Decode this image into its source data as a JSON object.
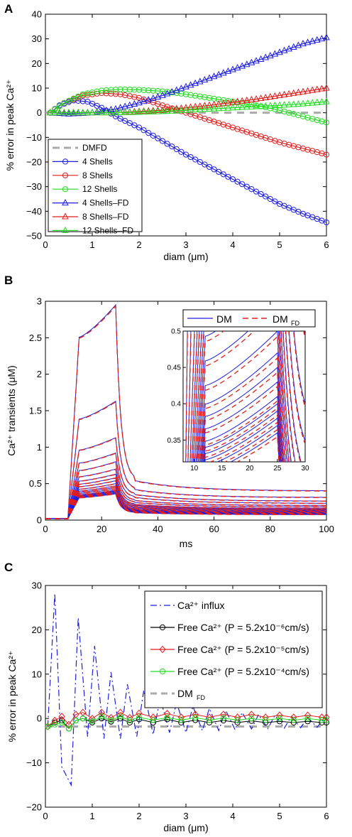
{
  "colors": {
    "blue": "#1f1fe0",
    "red": "#e01f1f",
    "green": "#22dd22",
    "black": "#000000",
    "gray": "#aaaaaa"
  },
  "chart_data": [
    {
      "panel": "A",
      "type": "line",
      "xlabel": "diam (μm)",
      "ylabel": "% error in peak Ca²⁺",
      "xlim": [
        0,
        6
      ],
      "ylim": [
        -50,
        40
      ],
      "xticks": [
        "0",
        "1",
        "2",
        "3",
        "4",
        "5",
        "6"
      ],
      "yticks": [
        "−50",
        "−40",
        "−30",
        "−20",
        "−10",
        "0",
        "10",
        "20",
        "30",
        "40"
      ],
      "legend_position": "bottom-left",
      "series": [
        {
          "name": "DMFD",
          "style": "dashed",
          "marker": "none",
          "color": "#aaaaaa",
          "x": [
            0,
            6
          ],
          "y": [
            0,
            0
          ]
        },
        {
          "name": "4 Shells",
          "style": "solid",
          "marker": "circle",
          "color": "#1f1fe0",
          "x": [
            0.1,
            0.3,
            0.6,
            0.9,
            1.2,
            1.5,
            2.0,
            2.5,
            3.0,
            3.5,
            4.0,
            4.5,
            5.0,
            5.5,
            6.0
          ],
          "y": [
            0,
            3,
            5,
            4.5,
            2,
            -1.5,
            -6,
            -11.5,
            -17,
            -22,
            -27,
            -32,
            -37,
            -41,
            -44.5
          ]
        },
        {
          "name": "8 Shells",
          "style": "solid",
          "marker": "circle",
          "color": "#e01f1f",
          "x": [
            0.1,
            0.4,
            0.8,
            1.2,
            1.6,
            2.0,
            2.5,
            3.0,
            3.5,
            4.0,
            4.5,
            5.0,
            5.5,
            6.0
          ],
          "y": [
            0,
            4,
            7,
            8,
            7.5,
            6,
            3,
            0,
            -3,
            -6,
            -9,
            -12,
            -14.5,
            -17
          ]
        },
        {
          "name": "12 Shells",
          "style": "solid",
          "marker": "circle",
          "color": "#22dd22",
          "x": [
            0.1,
            0.4,
            0.8,
            1.2,
            1.6,
            2.0,
            2.5,
            3.0,
            3.5,
            4.0,
            4.5,
            5.0,
            5.5,
            6.0
          ],
          "y": [
            0,
            4,
            7.5,
            9,
            9.5,
            9.3,
            8.7,
            7.5,
            6,
            4.5,
            3,
            1,
            -1.5,
            -4
          ]
        },
        {
          "name": "4 Shells–FD",
          "style": "solid",
          "marker": "triangle",
          "color": "#1f1fe0",
          "x": [
            0.1,
            0.5,
            1.0,
            1.5,
            2.0,
            2.5,
            3.0,
            3.5,
            4.0,
            4.5,
            5.0,
            5.5,
            6.0
          ],
          "y": [
            0,
            -0.5,
            0,
            1.5,
            4,
            7,
            10.5,
            14,
            17.5,
            21,
            24.5,
            28,
            30.5
          ]
        },
        {
          "name": "8 Shells–FD",
          "style": "solid",
          "marker": "triangle",
          "color": "#e01f1f",
          "x": [
            0.1,
            0.5,
            1.0,
            1.5,
            2.0,
            2.5,
            3.0,
            3.5,
            4.0,
            4.5,
            5.0,
            5.5,
            6.0
          ],
          "y": [
            0,
            0,
            0,
            0,
            0.5,
            1,
            2,
            3,
            4.2,
            5.5,
            7,
            8.5,
            10
          ]
        },
        {
          "name": "12 Shells–FD",
          "style": "solid",
          "marker": "triangle",
          "color": "#22dd22",
          "x": [
            0.1,
            0.5,
            1.0,
            1.5,
            2.0,
            2.5,
            3.0,
            3.5,
            4.0,
            4.5,
            5.0,
            5.5,
            6.0
          ],
          "y": [
            0,
            0,
            0,
            0,
            0.2,
            0.5,
            1,
            1.5,
            2,
            2.5,
            3,
            3.6,
            4.5
          ]
        }
      ]
    },
    {
      "panel": "B",
      "type": "line",
      "xlabel": "ms",
      "ylabel": "Ca²⁺ transients (μM)",
      "xlim": [
        0,
        100
      ],
      "ylim": [
        0,
        3
      ],
      "xticks": [
        "0",
        "20",
        "40",
        "60",
        "80",
        "100"
      ],
      "yticks": [
        "0",
        "0.5",
        "1",
        "1.5",
        "2",
        "2.5",
        "3"
      ],
      "legend": [
        {
          "name": "DM",
          "style": "solid",
          "color": "#1f1fe0"
        },
        {
          "name": "DM",
          "subscript": "FD",
          "style": "dashed",
          "color": "#e01f1f"
        }
      ],
      "series_peaks_uM": [
        2.95,
        1.63,
        1.13,
        0.92,
        0.8,
        0.7,
        0.63,
        0.58,
        0.54,
        0.5,
        0.47,
        0.45,
        0.43,
        0.41,
        0.4,
        0.39,
        0.38,
        0.37,
        0.36
      ],
      "series_tails_uM": [
        0.4,
        0.31,
        0.26,
        0.23,
        0.2,
        0.18,
        0.16,
        0.15,
        0.14,
        0.13,
        0.12,
        0.11,
        0.105,
        0.1,
        0.095,
        0.09,
        0.085,
        0.08,
        0.075
      ],
      "inset": {
        "xlim": [
          8,
          30
        ],
        "ylim": [
          0.32,
          0.5
        ],
        "xticks": [
          "10",
          "15",
          "20",
          "25",
          "30"
        ],
        "yticks": [
          "0.35",
          "0.4",
          "0.45",
          "0.5"
        ]
      }
    },
    {
      "panel": "C",
      "type": "line",
      "xlabel": "diam (μm)",
      "ylabel": "% error in peak Ca²⁺",
      "xlim": [
        0,
        6
      ],
      "ylim": [
        -20,
        35
      ],
      "xticks": [
        "0",
        "1",
        "2",
        "3",
        "4",
        "5",
        "6"
      ],
      "yticks": [
        "−20",
        "−10",
        "0",
        "10",
        "20",
        "30"
      ],
      "legend_position": "top-right",
      "legend": [
        {
          "name": "Ca²⁺ influx",
          "style": "dashdot",
          "color": "#1f1fe0"
        },
        {
          "name": "Free Ca²⁺ (P = 5.2x10⁻⁶cm/s)",
          "style": "solid",
          "marker": "circle",
          "color": "#000000"
        },
        {
          "name": "Free Ca²⁺ (P = 5.2x10⁻⁵cm/s)",
          "style": "solid",
          "marker": "diamond",
          "color": "#e01f1f"
        },
        {
          "name": "Free Ca²⁺ (P = 5.2x10⁻⁴cm/s)",
          "style": "solid",
          "marker": "circle",
          "color": "#22dd22"
        },
        {
          "name": "DM",
          "subscript": "FD",
          "style": "dashed",
          "color": "#aaaaaa"
        }
      ],
      "influx": {
        "x": [
          0.05,
          0.2,
          0.35,
          0.55,
          0.7,
          0.9,
          1.05,
          1.25,
          1.4,
          1.6,
          1.75,
          1.95,
          2.1,
          2.3,
          2.45,
          2.65,
          2.8,
          3.0,
          3.15,
          3.35,
          3.5,
          3.7,
          3.85,
          4.05,
          4.2,
          4.4,
          4.55,
          4.75,
          4.9,
          5.1,
          5.25,
          5.45,
          5.6,
          5.8,
          5.95
        ],
        "y": [
          0,
          33,
          -10,
          -14.5,
          27,
          -2.5,
          20,
          -3,
          13.5,
          -3,
          10.5,
          -2.5,
          9,
          -2,
          7,
          -1.5,
          6,
          -1.5,
          5,
          -1,
          4.5,
          -1,
          4,
          -0.8,
          3.5,
          -0.6,
          3,
          -0.5,
          2.8,
          -0.4,
          2.5,
          -0.3,
          2.3,
          -0.2,
          2
        ]
      },
      "free_ca": [
        {
          "x": [
            0.05,
            0.2,
            0.35,
            0.5,
            0.65,
            0.8,
            1.0,
            1.2,
            1.4,
            1.6,
            1.8,
            2.0,
            2.3,
            2.6,
            2.9,
            3.2,
            3.5,
            3.8,
            4.1,
            4.4,
            4.7,
            5.0,
            5.3,
            5.6,
            5.9,
            6.0
          ],
          "y": [
            0,
            1,
            1.5,
            -0.5,
            1.5,
            2,
            1,
            2,
            1.2,
            2,
            1,
            1.8,
            1,
            1.8,
            1,
            1.6,
            1,
            1.5,
            1,
            1.4,
            1,
            1.3,
            1,
            1.3,
            1,
            1
          ]
        },
        {
          "x": [
            0.05,
            0.2,
            0.35,
            0.5,
            0.65,
            0.8,
            1.0,
            1.2,
            1.4,
            1.6,
            1.8,
            2.0,
            2.3,
            2.6,
            2.9,
            3.2,
            3.5,
            3.8,
            4.1,
            4.4,
            4.7,
            5.0,
            5.3,
            5.6,
            5.9,
            6.0
          ],
          "y": [
            0,
            1.5,
            2.5,
            0.5,
            3,
            3.5,
            2,
            3.5,
            2.2,
            3.5,
            2.2,
            3.3,
            2.3,
            3.2,
            2.3,
            3,
            2.3,
            3,
            2.3,
            3,
            2.3,
            2.8,
            2.3,
            2.8,
            2.3,
            2.3
          ]
        },
        {
          "x": [
            0.05,
            0.2,
            0.35,
            0.5,
            0.65,
            0.8,
            1.0,
            1.2,
            1.4,
            1.6,
            1.8,
            2.0,
            2.3,
            2.6,
            2.9,
            3.2,
            3.5,
            3.8,
            4.1,
            4.4,
            4.7,
            5.0,
            5.3,
            5.6,
            5.9,
            6.0
          ],
          "y": [
            0,
            0.5,
            1,
            -0.5,
            1.5,
            2,
            1.3,
            2.5,
            1.5,
            2.5,
            1.5,
            2.3,
            1.6,
            2.2,
            1.6,
            2.2,
            1.6,
            2.1,
            1.6,
            2,
            1.6,
            2,
            1.6,
            2,
            1.6,
            1.6
          ]
        }
      ]
    }
  ]
}
